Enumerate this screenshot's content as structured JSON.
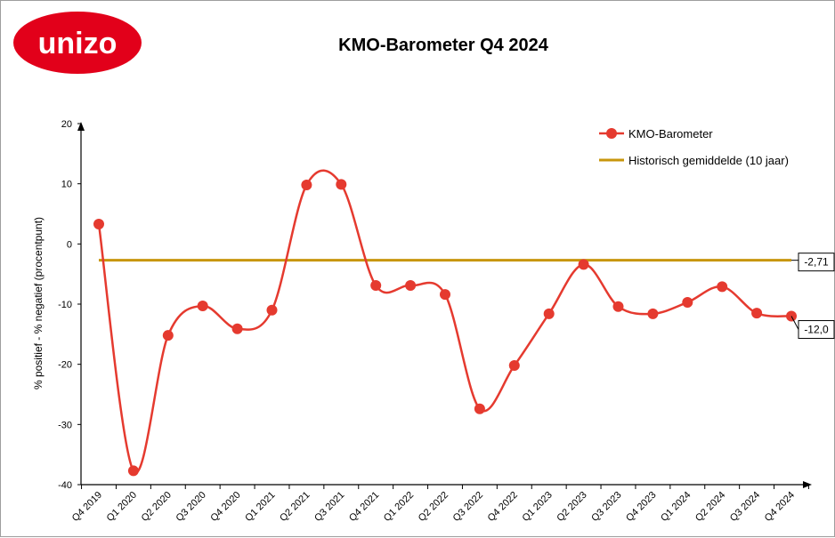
{
  "logo": {
    "text": "unizo",
    "color": "#e2001a"
  },
  "chart_data": {
    "type": "line",
    "title": "KMO-Barometer Q4 2024",
    "xlabel": "",
    "ylabel": "% positief - % negatief (procentpunt)",
    "categories": [
      "Q4 2019",
      "Q1 2020",
      "Q2 2020",
      "Q3 2020",
      "Q4 2020",
      "Q1 2021",
      "Q2 2021",
      "Q3 2021",
      "Q4 2021",
      "Q1 2022",
      "Q2 2022",
      "Q3 2022",
      "Q4 2022",
      "Q1 2023",
      "Q2 2023",
      "Q3 2023",
      "Q4 2023",
      "Q1 2024",
      "Q2 2024",
      "Q3 2024",
      "Q4 2024"
    ],
    "ylim": [
      -40,
      20
    ],
    "yticks": [
      20,
      10,
      0,
      -10,
      -20,
      -30,
      -40
    ],
    "series": [
      {
        "name": "KMO-Barometer",
        "color": "#e53a2f",
        "smooth": true,
        "markers": true,
        "values": [
          3.3,
          -37.7,
          -15.2,
          -10.3,
          -14.1,
          -11.0,
          9.8,
          9.9,
          -6.9,
          -6.9,
          -8.4,
          -27.4,
          -20.2,
          -11.6,
          -3.4,
          -10.4,
          -11.6,
          -9.7,
          -7.1,
          -11.5,
          -12.0
        ]
      },
      {
        "name": "Historisch gemiddelde (10 jaar)",
        "color": "#c8960c",
        "smooth": false,
        "markers": false,
        "values": [
          -2.71,
          -2.71,
          -2.71,
          -2.71,
          -2.71,
          -2.71,
          -2.71,
          -2.71,
          -2.71,
          -2.71,
          -2.71,
          -2.71,
          -2.71,
          -2.71,
          -2.71,
          -2.71,
          -2.71,
          -2.71,
          -2.71,
          -2.71,
          -2.71
        ]
      }
    ],
    "annotations": [
      {
        "series": 1,
        "index": 20,
        "text": "-2,71"
      },
      {
        "series": 0,
        "index": 20,
        "text": "-12,0"
      }
    ],
    "legend": "top-right",
    "grid": false
  }
}
